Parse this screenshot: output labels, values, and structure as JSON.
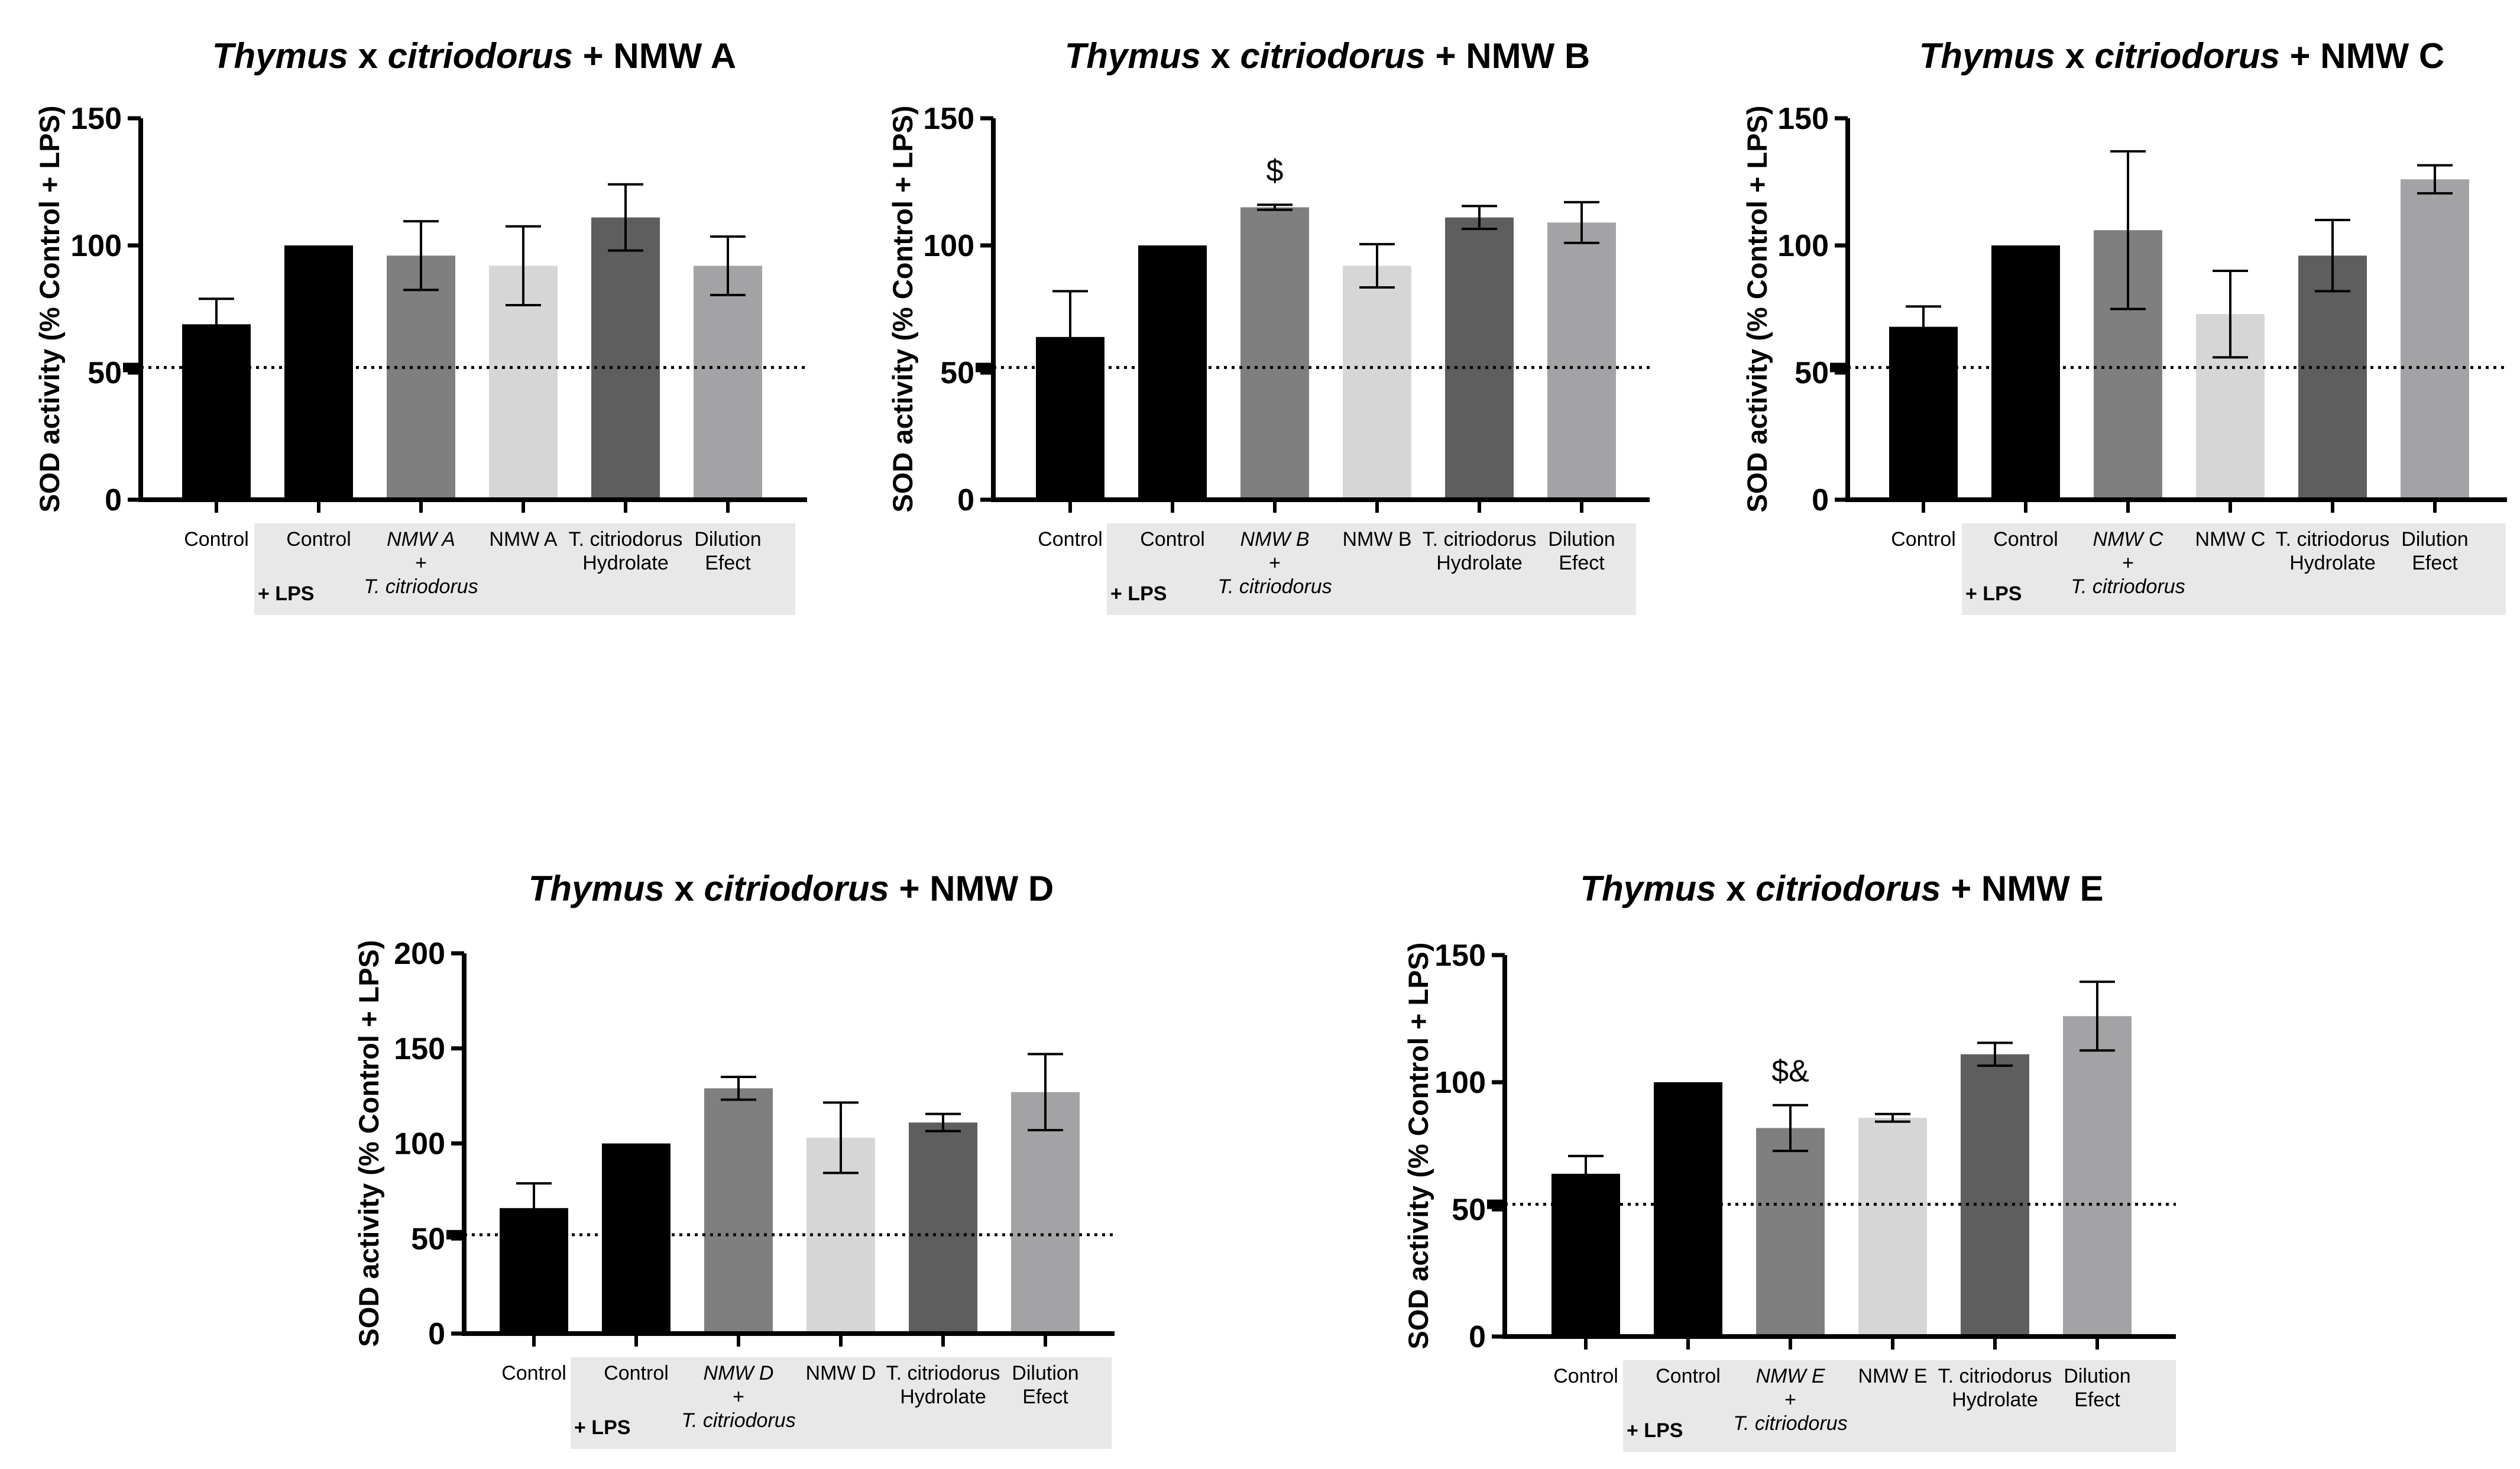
{
  "figure": {
    "group_label": "+ LPS",
    "ylabel": "SOD activity (% Control + LPS)",
    "reference_line_value": 52
  },
  "chart_data": [
    {
      "type": "bar",
      "title_parts": [
        "Thymus",
        " x ",
        "citriodorus",
        " + NMW A"
      ],
      "title": "Thymus x citriodorus + NMW A",
      "ylabel": "SOD activity (% Control + LPS)",
      "ylim": [
        0,
        150
      ],
      "yticks": [
        0,
        50,
        100,
        150
      ],
      "categories": [
        {
          "lines": [
            "Control"
          ],
          "italic": false
        },
        {
          "lines": [
            "Control"
          ],
          "italic": false
        },
        {
          "lines": [
            "NMW A",
            "+",
            "T. citriodorus"
          ],
          "italic": true
        },
        {
          "lines": [
            "NMW A"
          ],
          "italic": false
        },
        {
          "lines": [
            "T. citriodorus",
            "Hydrolate"
          ],
          "italic": false
        },
        {
          "lines": [
            "Dilution",
            "Efect"
          ],
          "italic": false
        }
      ],
      "values": [
        69,
        100,
        96,
        92,
        111,
        92
      ],
      "errors": [
        10,
        0,
        13.5,
        15.5,
        13,
        11.5
      ],
      "colors": [
        "#000000",
        "#000000",
        "#7f7f7f",
        "#d6d6d6",
        "#5e5e5e",
        "#a3a3a6"
      ],
      "annotations": [
        "",
        "",
        "",
        "",
        "",
        ""
      ],
      "reference_line": 52,
      "group_label": "+ LPS"
    },
    {
      "type": "bar",
      "title_parts": [
        "Thymus",
        " x ",
        "citriodorus",
        " + NMW B"
      ],
      "title": "Thymus x citriodorus + NMW B",
      "ylabel": "SOD activity (% Control + LPS)",
      "ylim": [
        0,
        150
      ],
      "yticks": [
        0,
        50,
        100,
        150
      ],
      "categories": [
        {
          "lines": [
            "Control"
          ],
          "italic": false
        },
        {
          "lines": [
            "Control"
          ],
          "italic": false
        },
        {
          "lines": [
            "NMW B",
            "+",
            "T. citriodorus"
          ],
          "italic": true
        },
        {
          "lines": [
            "NMW B"
          ],
          "italic": false
        },
        {
          "lines": [
            "T. citriodorus",
            "Hydrolate"
          ],
          "italic": false
        },
        {
          "lines": [
            "Dilution",
            "Efect"
          ],
          "italic": false
        }
      ],
      "values": [
        64,
        100,
        115,
        92,
        111,
        109
      ],
      "errors": [
        18,
        0,
        1,
        8.5,
        4.5,
        8
      ],
      "colors": [
        "#000000",
        "#000000",
        "#7f7f7f",
        "#d6d6d6",
        "#5e5e5e",
        "#a3a3a6"
      ],
      "annotations": [
        "",
        "",
        "$",
        "",
        "",
        ""
      ],
      "reference_line": 52,
      "group_label": "+ LPS"
    },
    {
      "type": "bar",
      "title_parts": [
        "Thymus",
        " x ",
        "citriodorus",
        " + NMW C"
      ],
      "title": "Thymus x citriodorus + NMW C",
      "ylabel": "SOD activity (% Control + LPS)",
      "ylim": [
        0,
        150
      ],
      "yticks": [
        0,
        50,
        100,
        150
      ],
      "categories": [
        {
          "lines": [
            "Control"
          ],
          "italic": false
        },
        {
          "lines": [
            "Control"
          ],
          "italic": false
        },
        {
          "lines": [
            "NMW C",
            "+",
            "T. citriodorus"
          ],
          "italic": true
        },
        {
          "lines": [
            "NMW C"
          ],
          "italic": false
        },
        {
          "lines": [
            "T. citriodorus",
            "Hydrolate"
          ],
          "italic": false
        },
        {
          "lines": [
            "Dilution",
            "Efect"
          ],
          "italic": false
        }
      ],
      "values": [
        68,
        100,
        106,
        73,
        96,
        126
      ],
      "errors": [
        8,
        0,
        31,
        17,
        14,
        5.5
      ],
      "colors": [
        "#000000",
        "#000000",
        "#7f7f7f",
        "#d6d6d6",
        "#5e5e5e",
        "#a3a3a6"
      ],
      "annotations": [
        "",
        "",
        "",
        "",
        "",
        ""
      ],
      "reference_line": 52,
      "group_label": "+ LPS"
    },
    {
      "type": "bar",
      "title_parts": [
        "Thymus",
        " x ",
        "citriodorus",
        " + NMW D"
      ],
      "title": "Thymus x citriodorus + NMW D",
      "ylabel": "SOD activity (% Control + LPS)",
      "ylim": [
        0,
        200
      ],
      "yticks": [
        0,
        50,
        100,
        150,
        200
      ],
      "categories": [
        {
          "lines": [
            "Control"
          ],
          "italic": false
        },
        {
          "lines": [
            "Control"
          ],
          "italic": false
        },
        {
          "lines": [
            "NMW D",
            "+",
            "T. citriodorus"
          ],
          "italic": true
        },
        {
          "lines": [
            "NMW D"
          ],
          "italic": false
        },
        {
          "lines": [
            "T. citriodorus",
            "Hydrolate"
          ],
          "italic": false
        },
        {
          "lines": [
            "Dilution",
            "Efect"
          ],
          "italic": false
        }
      ],
      "values": [
        66,
        100,
        129,
        103,
        111,
        127
      ],
      "errors": [
        13,
        0,
        6,
        18.5,
        4.5,
        20
      ],
      "colors": [
        "#000000",
        "#000000",
        "#7f7f7f",
        "#d6d6d6",
        "#5e5e5e",
        "#a3a3a6"
      ],
      "annotations": [
        "",
        "",
        "",
        "",
        "",
        ""
      ],
      "reference_line": 52,
      "group_label": "+ LPS"
    },
    {
      "type": "bar",
      "title_parts": [
        "Thymus",
        " x ",
        "citriodorus",
        " + NMW E"
      ],
      "title": "Thymus x citriodorus + NMW E",
      "ylabel": "SOD activity (% Control + LPS)",
      "ylim": [
        0,
        150
      ],
      "yticks": [
        0,
        50,
        100,
        150
      ],
      "categories": [
        {
          "lines": [
            "Control"
          ],
          "italic": false
        },
        {
          "lines": [
            "Control"
          ],
          "italic": false
        },
        {
          "lines": [
            "NMW E",
            "+",
            "T. citriodorus"
          ],
          "italic": true
        },
        {
          "lines": [
            "NMW E"
          ],
          "italic": false
        },
        {
          "lines": [
            "T. citriodorus",
            "Hydrolate"
          ],
          "italic": false
        },
        {
          "lines": [
            "Dilution",
            "Efect"
          ],
          "italic": false
        }
      ],
      "values": [
        64,
        100,
        82,
        86,
        111,
        126
      ],
      "errors": [
        7,
        0,
        9,
        1.5,
        4.5,
        13.5
      ],
      "colors": [
        "#000000",
        "#000000",
        "#7f7f7f",
        "#d6d6d6",
        "#5e5e5e",
        "#a3a3a6"
      ],
      "annotations": [
        "",
        "",
        "$&",
        "",
        "",
        ""
      ],
      "reference_line": 52,
      "group_label": "+ LPS"
    }
  ]
}
